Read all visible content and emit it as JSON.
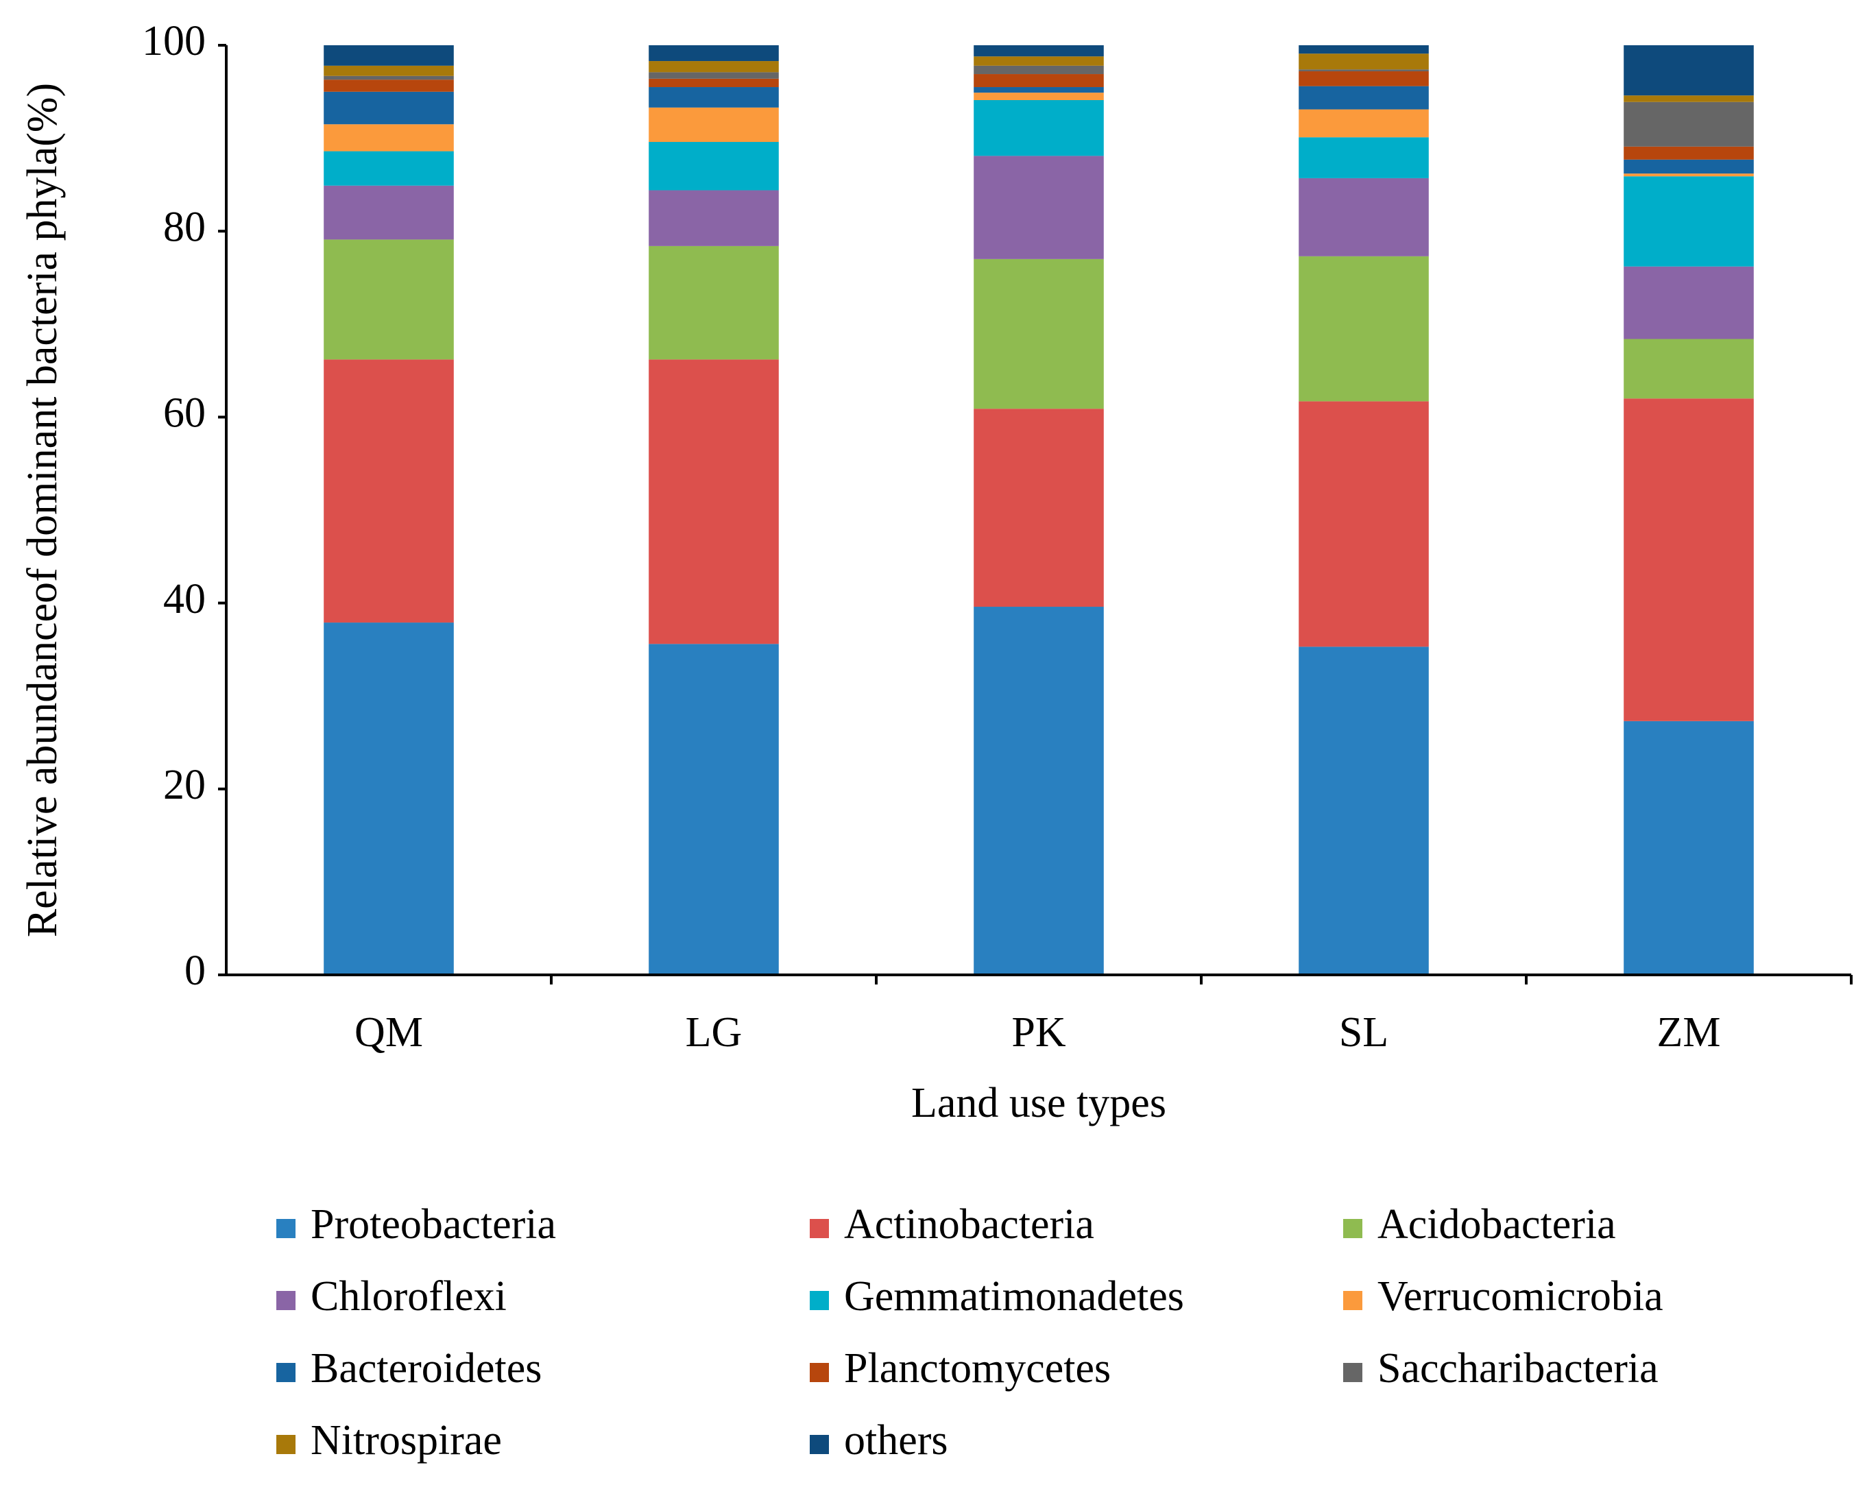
{
  "chart_data": {
    "type": "bar",
    "stacked": true,
    "y_label": "Relative abundanceof dominant bacteria phyla(%)",
    "x_label": "Land use types",
    "categories": [
      "QM",
      "LG",
      "PK",
      "SL",
      "ZM"
    ],
    "ylim": [
      0,
      100
    ],
    "yticks": [
      0,
      20,
      40,
      60,
      80,
      100
    ],
    "grid": false,
    "legend": "bottom",
    "series": [
      {
        "name": "Proteobacteria",
        "color": "#2980c0",
        "values": [
          37.9,
          35.6,
          39.6,
          35.3,
          27.3
        ]
      },
      {
        "name": "Actinobacteria",
        "color": "#dc504c",
        "values": [
          28.3,
          30.6,
          21.3,
          26.4,
          34.7
        ]
      },
      {
        "name": "Acidobacteria",
        "color": "#8fbb50",
        "values": [
          12.9,
          12.2,
          16.1,
          15.6,
          6.4
        ]
      },
      {
        "name": "Chloroflexi",
        "color": "#8a65a6",
        "values": [
          5.8,
          6.0,
          11.1,
          8.4,
          7.8
        ]
      },
      {
        "name": "Gemmatimonadetes",
        "color": "#00aec9",
        "values": [
          3.7,
          5.2,
          6.0,
          4.4,
          9.7
        ]
      },
      {
        "name": "Verrucomicrobia",
        "color": "#fb9a3c",
        "values": [
          2.9,
          3.7,
          0.8,
          3.0,
          0.3
        ]
      },
      {
        "name": "Bacteroidetes",
        "color": "#1764a0",
        "values": [
          3.5,
          2.2,
          0.6,
          2.5,
          1.5
        ]
      },
      {
        "name": "Planctomycetes",
        "color": "#b7460d",
        "values": [
          1.3,
          0.9,
          1.4,
          1.6,
          1.4
        ]
      },
      {
        "name": "Saccharibacteria",
        "color": "#666666",
        "values": [
          0.4,
          0.7,
          0.9,
          0.2,
          4.8
        ]
      },
      {
        "name": "Nitrospirae",
        "color": "#a8790a",
        "values": [
          1.1,
          1.2,
          1.0,
          1.7,
          0.7
        ]
      },
      {
        "name": "others",
        "color": "#0e4a7c",
        "values": [
          2.2,
          1.7,
          1.2,
          0.9,
          5.4
        ]
      }
    ]
  }
}
